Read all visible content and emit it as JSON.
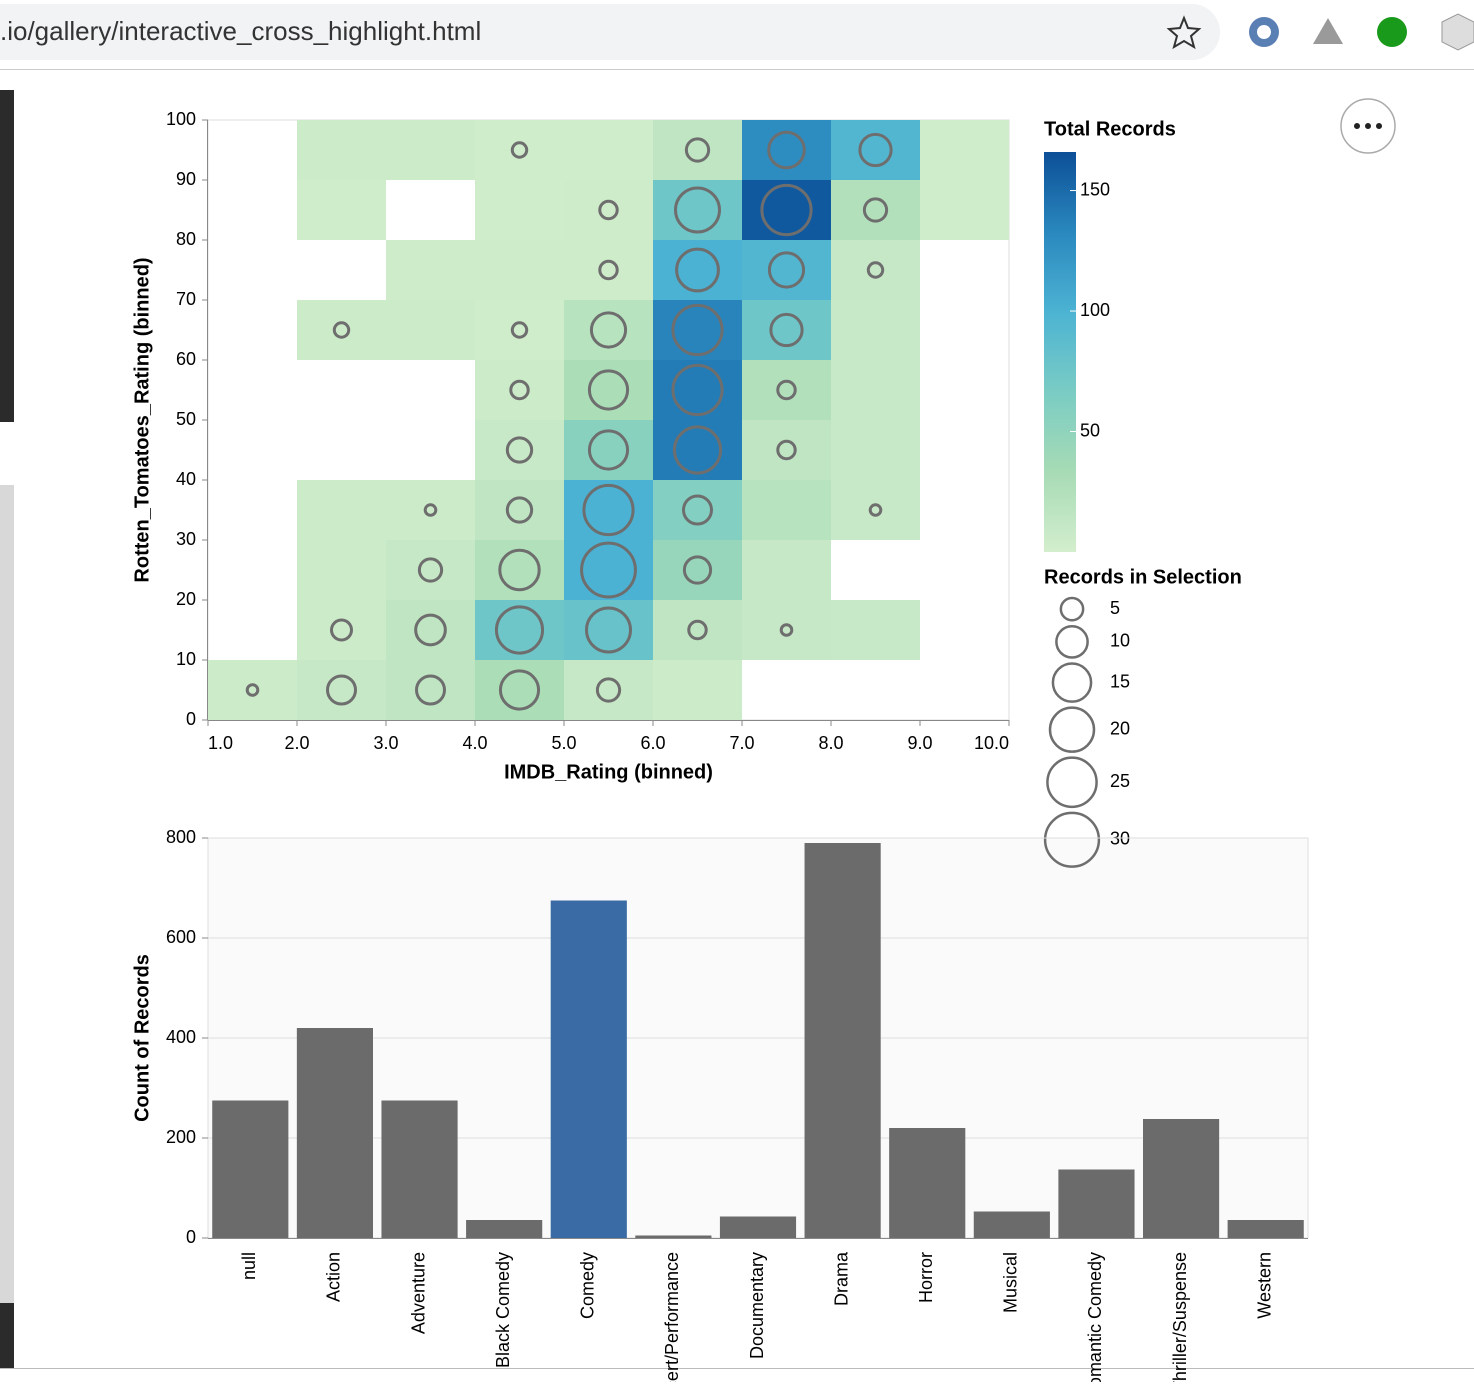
{
  "browser": {
    "url": ".io/gallery/interactive_cross_highlight.html"
  },
  "chart_data": [
    {
      "type": "heatmap",
      "x_label": "IMDB_Rating (binned)",
      "y_label": "Rotten_Tomatoes_Rating (binned)",
      "xlim": [
        1,
        10
      ],
      "xticks": [
        {
          "value": 1,
          "label": "1.0"
        },
        {
          "value": 2,
          "label": "2.0"
        },
        {
          "value": 3,
          "label": "3.0"
        },
        {
          "value": 4,
          "label": "4.0"
        },
        {
          "value": 5,
          "label": "5.0"
        },
        {
          "value": 6,
          "label": "6.0"
        },
        {
          "value": 7,
          "label": "7.0"
        },
        {
          "value": 8,
          "label": "8.0"
        },
        {
          "value": 9,
          "label": "9.0"
        },
        {
          "value": 10,
          "label": "10.0"
        }
      ],
      "ylim": [
        0,
        100
      ],
      "yticks": [
        0,
        10,
        20,
        30,
        40,
        50,
        60,
        70,
        80,
        90,
        100
      ],
      "x_bin": 1,
      "y_bin": 10,
      "color_legend": {
        "title": "Total Records",
        "domain": [
          0,
          166
        ],
        "ticks": [
          50,
          100,
          150
        ],
        "colors": [
          "#d3eecd",
          "#a7dbb5",
          "#7accc4",
          "#4cb3d3",
          "#2a88be",
          "#0c4f97"
        ]
      },
      "size_legend": {
        "title": "Records in Selection",
        "values": [
          5,
          10,
          15,
          20,
          25,
          30
        ],
        "stroke": "#6e6e6e"
      },
      "cells": [
        {
          "x": 2,
          "y": 90,
          "value": 5,
          "size": null
        },
        {
          "x": 3,
          "y": 90,
          "value": 5,
          "size": null
        },
        {
          "x": 4,
          "y": 90,
          "value": 3,
          "size": 2
        },
        {
          "x": 5,
          "y": 90,
          "value": 3,
          "size": null
        },
        {
          "x": 6,
          "y": 90,
          "value": 15,
          "size": 5
        },
        {
          "x": 7,
          "y": 90,
          "value": 130,
          "size": 13
        },
        {
          "x": 8,
          "y": 90,
          "value": 95,
          "size": 10
        },
        {
          "x": 9,
          "y": 90,
          "value": 3,
          "size": null
        },
        {
          "x": 2,
          "y": 80,
          "value": 3,
          "size": null
        },
        {
          "x": 4,
          "y": 80,
          "value": 3,
          "size": null
        },
        {
          "x": 5,
          "y": 80,
          "value": 4,
          "size": 3
        },
        {
          "x": 6,
          "y": 80,
          "value": 75,
          "size": 20
        },
        {
          "x": 7,
          "y": 80,
          "value": 160,
          "size": 25
        },
        {
          "x": 8,
          "y": 80,
          "value": 25,
          "size": 5
        },
        {
          "x": 9,
          "y": 80,
          "value": 3,
          "size": null
        },
        {
          "x": 3,
          "y": 70,
          "value": 4,
          "size": null
        },
        {
          "x": 4,
          "y": 70,
          "value": 4,
          "size": null
        },
        {
          "x": 5,
          "y": 70,
          "value": 4,
          "size": 3
        },
        {
          "x": 6,
          "y": 70,
          "value": 100,
          "size": 18
        },
        {
          "x": 7,
          "y": 70,
          "value": 95,
          "size": 12
        },
        {
          "x": 8,
          "y": 70,
          "value": 10,
          "size": 2
        },
        {
          "x": 2,
          "y": 60,
          "value": 5,
          "size": 2
        },
        {
          "x": 3,
          "y": 60,
          "value": 5,
          "size": null
        },
        {
          "x": 4,
          "y": 60,
          "value": 3,
          "size": 2
        },
        {
          "x": 5,
          "y": 60,
          "value": 20,
          "size": 12
        },
        {
          "x": 6,
          "y": 60,
          "value": 135,
          "size": 25
        },
        {
          "x": 7,
          "y": 60,
          "value": 75,
          "size": 10
        },
        {
          "x": 8,
          "y": 60,
          "value": 8,
          "size": null
        },
        {
          "x": 4,
          "y": 50,
          "value": 5,
          "size": 3
        },
        {
          "x": 5,
          "y": 50,
          "value": 30,
          "size": 15
        },
        {
          "x": 6,
          "y": 50,
          "value": 140,
          "size": 25
        },
        {
          "x": 7,
          "y": 50,
          "value": 25,
          "size": 3
        },
        {
          "x": 8,
          "y": 50,
          "value": 8,
          "size": null
        },
        {
          "x": 4,
          "y": 40,
          "value": 8,
          "size": 6
        },
        {
          "x": 5,
          "y": 40,
          "value": 55,
          "size": 15
        },
        {
          "x": 6,
          "y": 40,
          "value": 140,
          "size": 22
        },
        {
          "x": 7,
          "y": 40,
          "value": 15,
          "size": 3
        },
        {
          "x": 8,
          "y": 40,
          "value": 8,
          "size": null
        },
        {
          "x": 2,
          "y": 30,
          "value": 5,
          "size": null
        },
        {
          "x": 3,
          "y": 30,
          "value": 5,
          "size": 1
        },
        {
          "x": 4,
          "y": 30,
          "value": 15,
          "size": 6
        },
        {
          "x": 5,
          "y": 30,
          "value": 100,
          "size": 25
        },
        {
          "x": 6,
          "y": 30,
          "value": 60,
          "size": 8
        },
        {
          "x": 7,
          "y": 30,
          "value": 20,
          "size": null
        },
        {
          "x": 8,
          "y": 30,
          "value": 8,
          "size": 1
        },
        {
          "x": 2,
          "y": 20,
          "value": 5,
          "size": null
        },
        {
          "x": 3,
          "y": 20,
          "value": 10,
          "size": 5
        },
        {
          "x": 4,
          "y": 20,
          "value": 25,
          "size": 16
        },
        {
          "x": 5,
          "y": 20,
          "value": 100,
          "size": 30
        },
        {
          "x": 6,
          "y": 20,
          "value": 45,
          "size": 7
        },
        {
          "x": 7,
          "y": 20,
          "value": 10,
          "size": null
        },
        {
          "x": 2,
          "y": 10,
          "value": 5,
          "size": 4
        },
        {
          "x": 3,
          "y": 10,
          "value": 15,
          "size": 9
        },
        {
          "x": 4,
          "y": 10,
          "value": 75,
          "size": 22
        },
        {
          "x": 5,
          "y": 10,
          "value": 80,
          "size": 20
        },
        {
          "x": 6,
          "y": 10,
          "value": 15,
          "size": 3
        },
        {
          "x": 7,
          "y": 10,
          "value": 10,
          "size": 1
        },
        {
          "x": 8,
          "y": 10,
          "value": 8,
          "size": null
        },
        {
          "x": 1,
          "y": 0,
          "value": 5,
          "size": 1
        },
        {
          "x": 2,
          "y": 0,
          "value": 10,
          "size": 8
        },
        {
          "x": 3,
          "y": 0,
          "value": 15,
          "size": 8
        },
        {
          "x": 4,
          "y": 0,
          "value": 30,
          "size": 15
        },
        {
          "x": 5,
          "y": 0,
          "value": 10,
          "size": 5
        },
        {
          "x": 6,
          "y": 0,
          "value": 5,
          "size": null
        }
      ]
    },
    {
      "type": "bar",
      "y_label": "Count of Records",
      "categories": [
        "null",
        "Action",
        "Adventure",
        "Black Comedy",
        "Comedy",
        "Concert/Performance",
        "Documentary",
        "Drama",
        "Horror",
        "Musical",
        "Romantic Comedy",
        "Thriller/Suspense",
        "Western"
      ],
      "values": [
        275,
        420,
        275,
        36,
        675,
        5,
        43,
        790,
        220,
        53,
        137,
        238,
        36
      ],
      "color": "#6b6b6b",
      "highlight_color": "#3b6ba5",
      "selected_index": 4,
      "ylim": [
        0,
        800
      ],
      "yticks": [
        0,
        200,
        400,
        600,
        800
      ],
      "grid": true
    }
  ]
}
